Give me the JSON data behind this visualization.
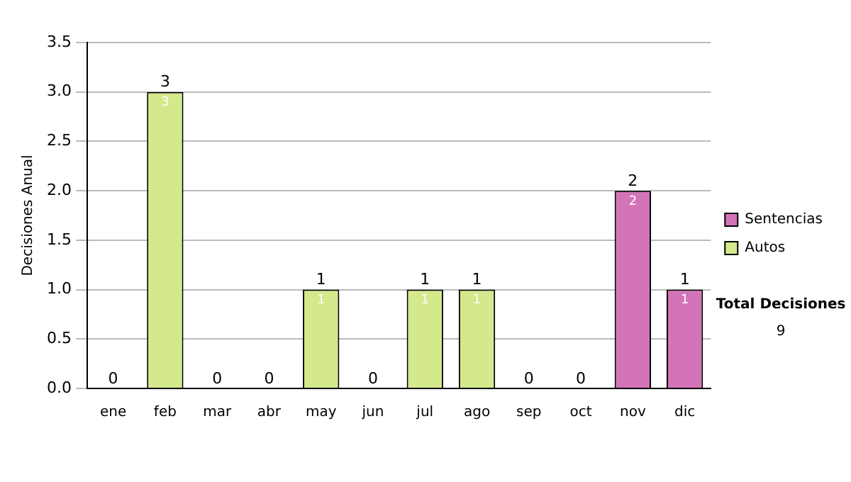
{
  "chart_data": {
    "type": "bar",
    "stacked": true,
    "ylabel": "Decisiones Anual",
    "categories": [
      "ene",
      "feb",
      "mar",
      "abr",
      "may",
      "jun",
      "jul",
      "ago",
      "sep",
      "oct",
      "nov",
      "dic"
    ],
    "series": [
      {
        "name": "Sentencias",
        "color": "#d474b8",
        "values": [
          null,
          null,
          null,
          null,
          null,
          null,
          null,
          null,
          null,
          null,
          2,
          1
        ]
      },
      {
        "name": "Autos",
        "color": "#d4e98c",
        "values": [
          null,
          3,
          null,
          null,
          1,
          null,
          1,
          1,
          null,
          null,
          null,
          null
        ]
      }
    ],
    "totals": [
      "0",
      "3",
      "0",
      "0",
      "1",
      "0",
      "1",
      "1",
      "0",
      "0",
      "2",
      "1"
    ],
    "data_labels": true,
    "ylim": [
      0,
      3.5
    ],
    "yticks": [
      {
        "value": 0,
        "label": "0.0"
      },
      {
        "value": 0.5,
        "label": "0.5"
      },
      {
        "value": 1,
        "label": "1.0"
      },
      {
        "value": 1.5,
        "label": "1.5"
      },
      {
        "value": 2,
        "label": "2.0"
      },
      {
        "value": 2.5,
        "label": "2.5"
      },
      {
        "value": 3,
        "label": "3.0"
      },
      {
        "value": 3.5,
        "label": "3.5"
      }
    ],
    "grid": "y",
    "legend": "right",
    "annotations": [
      "Total Decisiones",
      "9"
    ]
  }
}
